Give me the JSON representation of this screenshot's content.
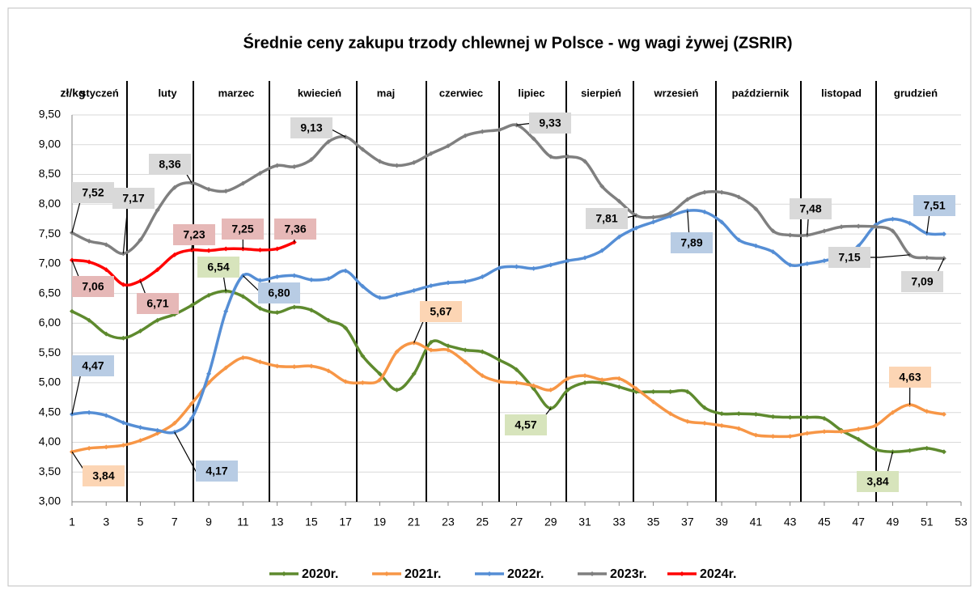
{
  "chart_data": {
    "type": "line",
    "title": "Średnie ceny zakupu trzody chlewnej w Polsce - wg wagi żywej (ZSRIR)",
    "y_label": "zł/kg",
    "months": [
      "styczeń",
      "luty",
      "marzec",
      "kwiecień",
      "maj",
      "czerwiec",
      "lipiec",
      "sierpień",
      "wrzesień",
      "październik",
      "listopad",
      "grudzień"
    ],
    "x": [
      1,
      2,
      3,
      4,
      5,
      6,
      7,
      8,
      9,
      10,
      11,
      12,
      13,
      14,
      15,
      16,
      17,
      18,
      19,
      20,
      21,
      22,
      23,
      24,
      25,
      26,
      27,
      28,
      29,
      30,
      31,
      32,
      33,
      34,
      35,
      36,
      37,
      38,
      39,
      40,
      41,
      42,
      43,
      44,
      45,
      46,
      47,
      48,
      49,
      50,
      51,
      52
    ],
    "xlim": [
      1,
      53
    ],
    "xticks": [
      1,
      3,
      5,
      7,
      9,
      11,
      13,
      15,
      17,
      19,
      21,
      23,
      25,
      27,
      29,
      31,
      33,
      35,
      37,
      39,
      41,
      43,
      45,
      47,
      49,
      51,
      53
    ],
    "ylim": [
      3,
      9.5
    ],
    "yticks": [
      {
        "value": 3,
        "label": "3,00"
      },
      {
        "value": 3.5,
        "label": "3,50"
      },
      {
        "value": 4,
        "label": "4,00"
      },
      {
        "value": 4.5,
        "label": "4,50"
      },
      {
        "value": 5,
        "label": "5,00"
      },
      {
        "value": 5.5,
        "label": "5,50"
      },
      {
        "value": 6,
        "label": "6,00"
      },
      {
        "value": 6.5,
        "label": "6,50"
      },
      {
        "value": 7,
        "label": "7,00"
      },
      {
        "value": 7.5,
        "label": "7,50"
      },
      {
        "value": 8,
        "label": "8,00"
      },
      {
        "value": 8.5,
        "label": "8,50"
      },
      {
        "value": 9,
        "label": "9,00"
      },
      {
        "value": 9.5,
        "label": "9,50"
      }
    ],
    "grid": true,
    "legend": "bottom",
    "series": [
      {
        "name": "2020r.",
        "color": "#5e8a2e",
        "values": [
          6.2,
          6.05,
          5.82,
          5.75,
          5.87,
          6.05,
          6.15,
          6.3,
          6.47,
          6.54,
          6.45,
          6.25,
          6.18,
          6.27,
          6.22,
          6.05,
          5.92,
          5.45,
          5.15,
          4.88,
          5.15,
          5.68,
          5.62,
          5.55,
          5.52,
          5.38,
          5.22,
          4.9,
          4.57,
          4.88,
          5.0,
          5.0,
          4.93,
          4.85,
          4.85,
          4.85,
          4.85,
          4.58,
          4.48,
          4.48,
          4.47,
          4.43,
          4.42,
          4.42,
          4.4,
          4.2,
          4.05,
          3.88,
          3.84,
          3.86,
          3.9,
          3.84
        ],
        "value_labels": [
          null,
          null,
          null,
          null,
          null,
          null,
          null,
          null,
          null,
          "6,54",
          null,
          null,
          null,
          null,
          null,
          null,
          null,
          null,
          null,
          null,
          null,
          null,
          null,
          null,
          null,
          null,
          null,
          null,
          "4,57",
          null,
          null,
          null,
          null,
          null,
          null,
          null,
          null,
          null,
          null,
          null,
          null,
          null,
          null,
          null,
          null,
          null,
          null,
          null,
          "3,84",
          null,
          null,
          null
        ]
      },
      {
        "name": "2021r.",
        "color": "#f79646",
        "values": [
          3.84,
          3.9,
          3.92,
          3.95,
          4.03,
          4.15,
          4.32,
          4.65,
          5.0,
          5.25,
          5.42,
          5.35,
          5.28,
          5.27,
          5.28,
          5.2,
          5.02,
          5.0,
          5.05,
          5.52,
          5.67,
          5.55,
          5.55,
          5.35,
          5.12,
          5.02,
          5.0,
          4.95,
          4.88,
          5.07,
          5.12,
          5.05,
          5.07,
          4.9,
          4.68,
          4.48,
          4.35,
          4.32,
          4.28,
          4.23,
          4.12,
          4.1,
          4.1,
          4.15,
          4.18,
          4.18,
          4.22,
          4.28,
          4.5,
          4.63,
          4.52,
          4.47
        ],
        "value_labels": [
          "3,84",
          null,
          null,
          null,
          null,
          null,
          null,
          null,
          null,
          null,
          null,
          null,
          null,
          null,
          null,
          null,
          null,
          null,
          null,
          null,
          "5,67",
          null,
          null,
          null,
          null,
          null,
          null,
          null,
          null,
          null,
          null,
          null,
          null,
          null,
          null,
          null,
          null,
          null,
          null,
          null,
          null,
          null,
          null,
          null,
          null,
          null,
          null,
          null,
          null,
          "4,63",
          null,
          null
        ]
      },
      {
        "name": "2022r.",
        "color": "#558ed5",
        "values": [
          4.47,
          4.5,
          4.45,
          4.33,
          4.25,
          4.2,
          4.17,
          4.4,
          5.15,
          6.2,
          6.8,
          6.72,
          6.78,
          6.8,
          6.73,
          6.75,
          6.88,
          6.62,
          6.43,
          6.48,
          6.55,
          6.63,
          6.68,
          6.7,
          6.78,
          6.93,
          6.95,
          6.92,
          6.98,
          7.05,
          7.1,
          7.22,
          7.45,
          7.6,
          7.7,
          7.8,
          7.89,
          7.87,
          7.7,
          7.4,
          7.3,
          7.2,
          6.98,
          7.0,
          7.05,
          7.12,
          7.3,
          7.65,
          7.75,
          7.68,
          7.51,
          7.5
        ],
        "value_labels": [
          "4,47",
          null,
          null,
          null,
          null,
          null,
          "4,17",
          null,
          null,
          null,
          "6,80",
          null,
          null,
          null,
          null,
          null,
          null,
          null,
          null,
          null,
          null,
          null,
          null,
          null,
          null,
          null,
          null,
          null,
          null,
          null,
          null,
          null,
          null,
          null,
          null,
          null,
          "7,89",
          null,
          null,
          null,
          null,
          null,
          null,
          null,
          null,
          null,
          null,
          null,
          null,
          null,
          "7,51",
          null
        ]
      },
      {
        "name": "2023r.",
        "color": "#7f7f7f",
        "values": [
          7.52,
          7.38,
          7.32,
          7.17,
          7.4,
          7.9,
          8.28,
          8.36,
          8.25,
          8.22,
          8.35,
          8.52,
          8.65,
          8.63,
          8.75,
          9.05,
          9.13,
          8.92,
          8.72,
          8.65,
          8.7,
          8.85,
          8.98,
          9.15,
          9.22,
          9.25,
          9.33,
          9.1,
          8.8,
          8.8,
          8.72,
          8.3,
          8.05,
          7.81,
          7.78,
          7.85,
          8.08,
          8.2,
          8.2,
          8.12,
          7.92,
          7.55,
          7.48,
          7.48,
          7.55,
          7.62,
          7.63,
          7.62,
          7.55,
          7.15,
          7.1,
          7.09
        ],
        "value_labels": [
          "7,52",
          null,
          null,
          "7,17",
          null,
          null,
          null,
          "8,36",
          null,
          null,
          null,
          null,
          null,
          null,
          null,
          null,
          "9,13",
          null,
          null,
          null,
          null,
          null,
          null,
          null,
          null,
          null,
          "9,33",
          null,
          null,
          null,
          null,
          null,
          null,
          "7,81",
          null,
          null,
          null,
          null,
          null,
          null,
          null,
          null,
          null,
          "7,48",
          null,
          null,
          null,
          null,
          null,
          "7,15",
          null,
          "7,09"
        ]
      },
      {
        "name": "2024r.",
        "color": "#ff0000",
        "values": [
          7.06,
          7.03,
          6.9,
          6.65,
          6.71,
          6.9,
          7.15,
          7.23,
          7.22,
          7.25,
          7.25,
          7.23,
          7.25,
          7.36,
          null,
          null,
          null,
          null,
          null,
          null,
          null,
          null,
          null,
          null,
          null,
          null,
          null,
          null,
          null,
          null,
          null,
          null,
          null,
          null,
          null,
          null,
          null,
          null,
          null,
          null,
          null,
          null,
          null,
          null,
          null,
          null,
          null,
          null,
          null,
          null,
          null,
          null
        ],
        "value_labels": [
          "7,06",
          null,
          null,
          null,
          "6,71",
          null,
          null,
          "7,23",
          null,
          null,
          "7,25",
          null,
          null,
          "7,36",
          null,
          null,
          null,
          null,
          null,
          null,
          null,
          null,
          null,
          null,
          null,
          null,
          null,
          null,
          null,
          null,
          null,
          null,
          null,
          null,
          null,
          null,
          null,
          null,
          null,
          null,
          null,
          null,
          null,
          null,
          null,
          null,
          null,
          null,
          null,
          null,
          null,
          null
        ]
      }
    ]
  }
}
